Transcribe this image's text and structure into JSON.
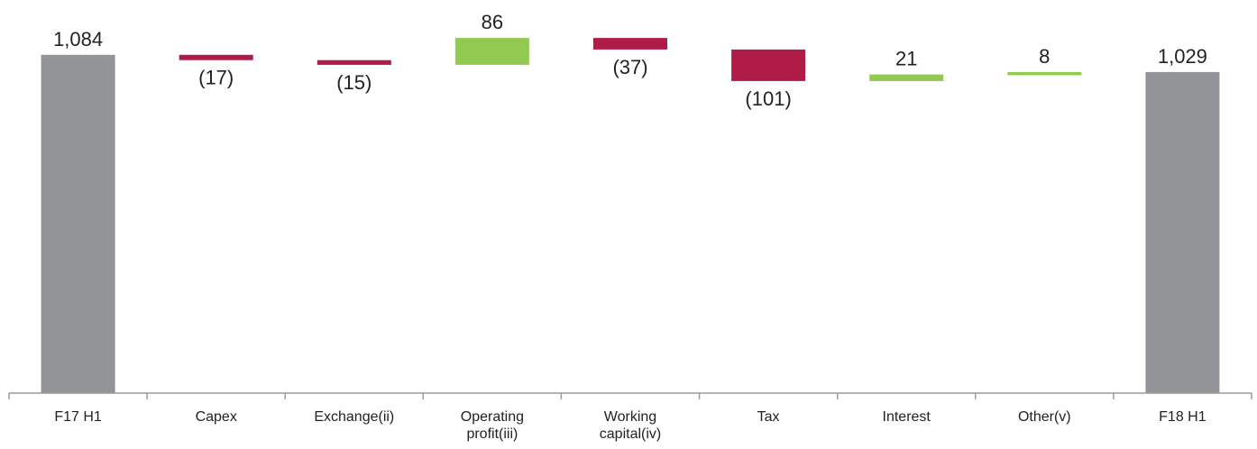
{
  "chart_data": {
    "type": "bar",
    "variant": "waterfall",
    "title": "",
    "xlabel": "",
    "ylabel": "",
    "categories": [
      [
        "F17 H1"
      ],
      [
        "Capex"
      ],
      [
        "Exchange(ii)"
      ],
      [
        "Operating",
        "profit(iii)"
      ],
      [
        "Working",
        "capital(iv)"
      ],
      [
        "Tax"
      ],
      [
        "Interest"
      ],
      [
        "Other(v)"
      ],
      [
        "F18 H1"
      ]
    ],
    "values": [
      1084,
      -17,
      -15,
      86,
      -37,
      -101,
      21,
      8,
      1029
    ],
    "kinds": [
      "total",
      "delta",
      "delta",
      "delta",
      "delta",
      "delta",
      "delta",
      "delta",
      "total"
    ],
    "labels": [
      "1,084",
      "(17)",
      "(15)",
      "86",
      "(37)",
      "(101)",
      "21",
      "8",
      "1,029"
    ],
    "colors": {
      "total": "#929497",
      "increase": "#92c950",
      "decrease": "#b01c48"
    },
    "grid": false,
    "legend": "none"
  }
}
